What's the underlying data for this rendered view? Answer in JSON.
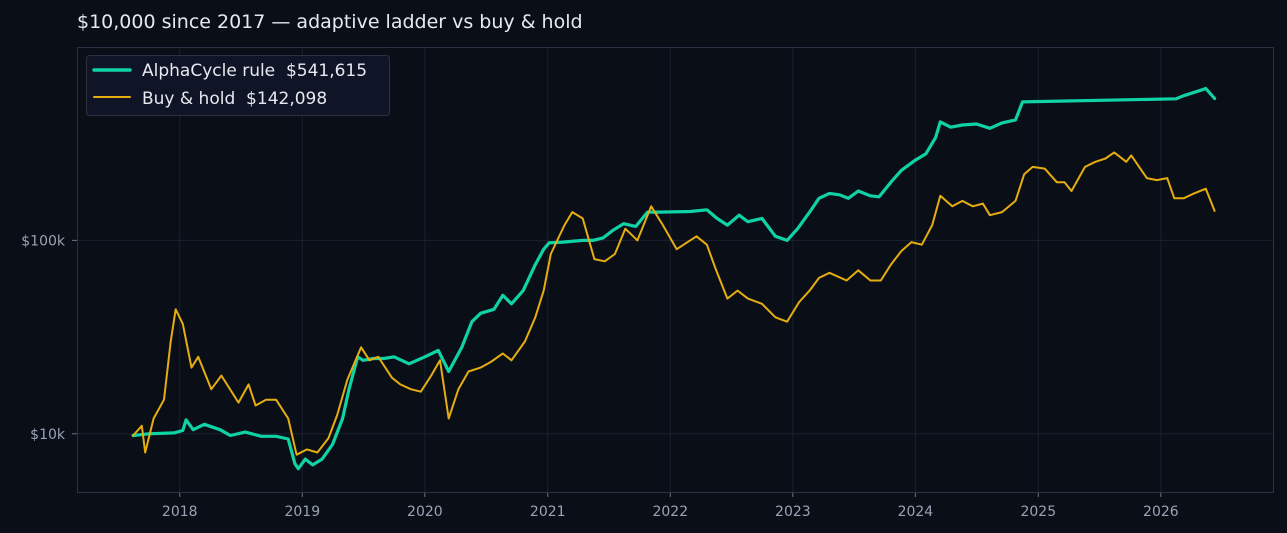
{
  "chart_data": {
    "type": "line",
    "title": "$10,000 since 2017 — adaptive ladder vs buy & hold",
    "xlabel": "",
    "ylabel": "",
    "y_scale": "log",
    "xlim": [
      "2017-03-01",
      "2026-12-01"
    ],
    "ylim": [
      5000,
      1000000
    ],
    "x_ticks": [
      "2018",
      "2019",
      "2020",
      "2021",
      "2022",
      "2023",
      "2024",
      "2025",
      "2026"
    ],
    "y_ticks": [
      {
        "value": 10000,
        "label": "$10k"
      },
      {
        "value": 100000,
        "label": "$100k"
      }
    ],
    "grid": true,
    "legend_position": "top-left",
    "series": [
      {
        "name": "AlphaCycle rule  $541,615",
        "color": "#10d3a5",
        "points": [
          [
            "2017-08-15",
            9800
          ],
          [
            "2017-10-01",
            10000
          ],
          [
            "2017-12-15",
            10100
          ],
          [
            "2018-01-10",
            10400
          ],
          [
            "2018-01-20",
            11800
          ],
          [
            "2018-02-10",
            10500
          ],
          [
            "2018-03-15",
            11200
          ],
          [
            "2018-05-01",
            10500
          ],
          [
            "2018-06-01",
            9800
          ],
          [
            "2018-07-15",
            10200
          ],
          [
            "2018-09-01",
            9700
          ],
          [
            "2018-10-15",
            9700
          ],
          [
            "2018-11-20",
            9400
          ],
          [
            "2018-12-10",
            7000
          ],
          [
            "2018-12-20",
            6600
          ],
          [
            "2019-01-10",
            7400
          ],
          [
            "2019-02-01",
            6900
          ],
          [
            "2019-03-01",
            7400
          ],
          [
            "2019-04-01",
            8800
          ],
          [
            "2019-05-01",
            12000
          ],
          [
            "2019-05-20",
            17000
          ],
          [
            "2019-06-15",
            25000
          ],
          [
            "2019-07-01",
            24000
          ],
          [
            "2019-08-01",
            24500
          ],
          [
            "2019-09-01",
            24500
          ],
          [
            "2019-10-01",
            25000
          ],
          [
            "2019-11-15",
            23000
          ],
          [
            "2020-01-01",
            25000
          ],
          [
            "2020-02-10",
            27000
          ],
          [
            "2020-03-12",
            21000
          ],
          [
            "2020-04-20",
            28000
          ],
          [
            "2020-05-20",
            38000
          ],
          [
            "2020-06-15",
            42000
          ],
          [
            "2020-07-25",
            44000
          ],
          [
            "2020-08-20",
            52000
          ],
          [
            "2020-09-15",
            47000
          ],
          [
            "2020-10-20",
            55000
          ],
          [
            "2020-11-25",
            75000
          ],
          [
            "2020-12-20",
            90000
          ],
          [
            "2021-01-05",
            97000
          ],
          [
            "2021-02-15",
            98000
          ],
          [
            "2021-04-15",
            100000
          ],
          [
            "2021-05-15",
            100000
          ],
          [
            "2021-06-15",
            103000
          ],
          [
            "2021-07-15",
            113000
          ],
          [
            "2021-08-15",
            122000
          ],
          [
            "2021-09-20",
            118000
          ],
          [
            "2021-10-25",
            140000
          ],
          [
            "2021-12-01",
            140000
          ],
          [
            "2022-03-01",
            141000
          ],
          [
            "2022-04-20",
            144000
          ],
          [
            "2022-05-20",
            130000
          ],
          [
            "2022-06-20",
            120000
          ],
          [
            "2022-07-25",
            135000
          ],
          [
            "2022-08-20",
            125000
          ],
          [
            "2022-10-01",
            130000
          ],
          [
            "2022-11-10",
            105000
          ],
          [
            "2022-12-15",
            100000
          ],
          [
            "2023-01-15",
            115000
          ],
          [
            "2023-02-20",
            140000
          ],
          [
            "2023-03-20",
            165000
          ],
          [
            "2023-04-20",
            175000
          ],
          [
            "2023-05-20",
            172000
          ],
          [
            "2023-06-15",
            165000
          ],
          [
            "2023-07-15",
            180000
          ],
          [
            "2023-08-20",
            170000
          ],
          [
            "2023-09-15",
            168000
          ],
          [
            "2023-10-20",
            200000
          ],
          [
            "2023-11-20",
            230000
          ],
          [
            "2024-01-01",
            260000
          ],
          [
            "2024-02-01",
            280000
          ],
          [
            "2024-03-01",
            340000
          ],
          [
            "2024-03-15",
            410000
          ],
          [
            "2024-04-15",
            385000
          ],
          [
            "2024-05-20",
            395000
          ],
          [
            "2024-07-01",
            400000
          ],
          [
            "2024-08-10",
            380000
          ],
          [
            "2024-09-15",
            405000
          ],
          [
            "2024-10-25",
            420000
          ],
          [
            "2024-11-15",
            520000
          ],
          [
            "2026-02-15",
            540000
          ],
          [
            "2026-03-10",
            560000
          ],
          [
            "2026-04-20",
            590000
          ],
          [
            "2026-05-15",
            610000
          ],
          [
            "2026-06-10",
            541615
          ]
        ]
      },
      {
        "name": "Buy & hold  $142,098",
        "color": "#e5ad10",
        "points": [
          [
            "2017-08-15",
            9800
          ],
          [
            "2017-09-10",
            11000
          ],
          [
            "2017-09-20",
            8000
          ],
          [
            "2017-10-15",
            12000
          ],
          [
            "2017-11-15",
            15000
          ],
          [
            "2017-12-05",
            30000
          ],
          [
            "2017-12-20",
            44000
          ],
          [
            "2018-01-10",
            37000
          ],
          [
            "2018-02-05",
            22000
          ],
          [
            "2018-02-25",
            25000
          ],
          [
            "2018-04-05",
            17000
          ],
          [
            "2018-05-05",
            20000
          ],
          [
            "2018-06-25",
            14500
          ],
          [
            "2018-07-25",
            18000
          ],
          [
            "2018-08-15",
            14000
          ],
          [
            "2018-09-15",
            15000
          ],
          [
            "2018-10-15",
            15000
          ],
          [
            "2018-11-20",
            12000
          ],
          [
            "2018-12-15",
            7800
          ],
          [
            "2019-01-15",
            8300
          ],
          [
            "2019-02-15",
            8000
          ],
          [
            "2019-03-20",
            9500
          ],
          [
            "2019-04-15",
            12500
          ],
          [
            "2019-05-15",
            19000
          ],
          [
            "2019-06-25",
            28000
          ],
          [
            "2019-07-20",
            24000
          ],
          [
            "2019-08-15",
            25000
          ],
          [
            "2019-09-25",
            19500
          ],
          [
            "2019-10-20",
            18000
          ],
          [
            "2019-11-20",
            17000
          ],
          [
            "2019-12-20",
            16500
          ],
          [
            "2020-01-20",
            20000
          ],
          [
            "2020-02-15",
            24000
          ],
          [
            "2020-03-12",
            12000
          ],
          [
            "2020-04-10",
            17000
          ],
          [
            "2020-05-10",
            21000
          ],
          [
            "2020-06-15",
            22000
          ],
          [
            "2020-07-15",
            23500
          ],
          [
            "2020-08-20",
            26000
          ],
          [
            "2020-09-15",
            24000
          ],
          [
            "2020-10-25",
            30000
          ],
          [
            "2020-11-25",
            40000
          ],
          [
            "2020-12-20",
            55000
          ],
          [
            "2021-01-10",
            85000
          ],
          [
            "2021-02-20",
            120000
          ],
          [
            "2021-03-15",
            140000
          ],
          [
            "2021-04-15",
            130000
          ],
          [
            "2021-05-20",
            80000
          ],
          [
            "2021-06-20",
            78000
          ],
          [
            "2021-07-20",
            85000
          ],
          [
            "2021-08-20",
            115000
          ],
          [
            "2021-09-25",
            100000
          ],
          [
            "2021-11-05",
            150000
          ],
          [
            "2021-12-10",
            120000
          ],
          [
            "2022-01-20",
            90000
          ],
          [
            "2022-03-20",
            105000
          ],
          [
            "2022-04-20",
            95000
          ],
          [
            "2022-05-15",
            72000
          ],
          [
            "2022-06-20",
            50000
          ],
          [
            "2022-07-20",
            55000
          ],
          [
            "2022-08-20",
            50000
          ],
          [
            "2022-10-01",
            47000
          ],
          [
            "2022-11-10",
            40000
          ],
          [
            "2022-12-15",
            38000
          ],
          [
            "2023-01-20",
            48000
          ],
          [
            "2023-02-20",
            55000
          ],
          [
            "2023-03-20",
            64000
          ],
          [
            "2023-04-20",
            68000
          ],
          [
            "2023-06-10",
            62000
          ],
          [
            "2023-07-15",
            70000
          ],
          [
            "2023-08-20",
            62000
          ],
          [
            "2023-09-20",
            62000
          ],
          [
            "2023-10-20",
            75000
          ],
          [
            "2023-11-20",
            88000
          ],
          [
            "2023-12-20",
            98000
          ],
          [
            "2024-01-20",
            95000
          ],
          [
            "2024-02-20",
            120000
          ],
          [
            "2024-03-15",
            170000
          ],
          [
            "2024-04-20",
            150000
          ],
          [
            "2024-05-20",
            160000
          ],
          [
            "2024-06-20",
            150000
          ],
          [
            "2024-07-20",
            155000
          ],
          [
            "2024-08-10",
            135000
          ],
          [
            "2024-09-15",
            140000
          ],
          [
            "2024-10-25",
            160000
          ],
          [
            "2024-11-20",
            220000
          ],
          [
            "2024-12-15",
            240000
          ],
          [
            "2025-01-20",
            235000
          ],
          [
            "2025-02-25",
            200000
          ],
          [
            "2025-03-20",
            200000
          ],
          [
            "2025-04-10",
            180000
          ],
          [
            "2025-05-20",
            240000
          ],
          [
            "2025-06-20",
            255000
          ],
          [
            "2025-07-20",
            265000
          ],
          [
            "2025-08-15",
            285000
          ],
          [
            "2025-09-20",
            255000
          ],
          [
            "2025-10-05",
            275000
          ],
          [
            "2025-11-20",
            210000
          ],
          [
            "2025-12-20",
            205000
          ],
          [
            "2026-01-20",
            210000
          ],
          [
            "2026-02-10",
            165000
          ],
          [
            "2026-03-10",
            165000
          ],
          [
            "2026-04-10",
            175000
          ],
          [
            "2026-05-15",
            185000
          ],
          [
            "2026-06-10",
            142098
          ]
        ]
      }
    ]
  }
}
